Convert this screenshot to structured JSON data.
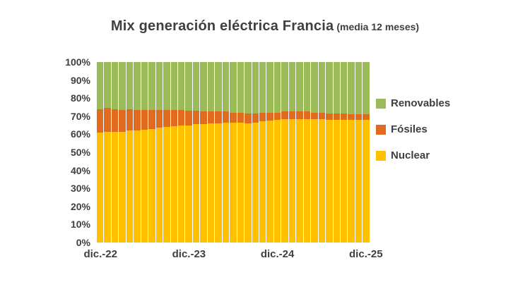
{
  "title": {
    "main": "Mix generación eléctrica Francia",
    "sub": "(media 12 meses)"
  },
  "chart_data": {
    "type": "bar",
    "subtype": "stacked-100-percent",
    "title": "Mix generación eléctrica Francia (media 12 meses)",
    "xlabel": "",
    "ylabel": "",
    "ylim": [
      0,
      100
    ],
    "grid": false,
    "legend_position": "right",
    "y_tick_labels": [
      "100%",
      "90%",
      "80%",
      "70%",
      "60%",
      "50%",
      "40%",
      "30%",
      "20%",
      "10%",
      "0%"
    ],
    "x_ticks": [
      {
        "label": "dic.-22",
        "index": 0
      },
      {
        "label": "dic.-23",
        "index": 12
      },
      {
        "label": "dic.-24",
        "index": 24
      },
      {
        "label": "dic.-25",
        "index": 36
      }
    ],
    "series": [
      {
        "name": "Nuclear",
        "color": "#FFC000",
        "values": [
          61,
          61.5,
          61.5,
          61.5,
          62,
          62,
          62.5,
          63,
          63.5,
          64,
          64.5,
          65,
          65,
          65.5,
          65.5,
          66,
          66,
          66.5,
          66.5,
          66.5,
          66,
          66.5,
          67,
          67.5,
          68,
          68.5,
          68.5,
          68.5,
          68.5,
          68.5,
          68.5,
          68,
          68,
          68,
          68,
          68,
          68
        ]
      },
      {
        "name": "Fósiles",
        "color": "#E06B1E",
        "values": [
          13,
          13,
          12.5,
          12,
          12,
          11.5,
          11,
          10.5,
          10,
          9.5,
          9,
          8.5,
          8,
          7.5,
          7,
          6.5,
          6.5,
          6,
          5.5,
          5.5,
          5.5,
          5,
          5,
          4.5,
          4,
          4,
          4,
          4,
          4,
          3.5,
          3.5,
          3.5,
          3.5,
          3.5,
          3,
          3,
          3
        ]
      },
      {
        "name": "Renovables",
        "color": "#9BBB59",
        "values": [
          26,
          25.5,
          26,
          26.5,
          26,
          26.5,
          26.5,
          26.5,
          26.5,
          26.5,
          26.5,
          26.5,
          27,
          27,
          27.5,
          27.5,
          27.5,
          27.5,
          28,
          28,
          28.5,
          28.5,
          28,
          28,
          28,
          27.5,
          27.5,
          27.5,
          27.5,
          28,
          28,
          28.5,
          28.5,
          28.5,
          29,
          29,
          29
        ]
      }
    ],
    "legend": [
      {
        "label": "Renovables",
        "color": "#9BBB59"
      },
      {
        "label": "Fósiles",
        "color": "#E06B1E"
      },
      {
        "label": "Nuclear",
        "color": "#FFC000"
      }
    ]
  }
}
